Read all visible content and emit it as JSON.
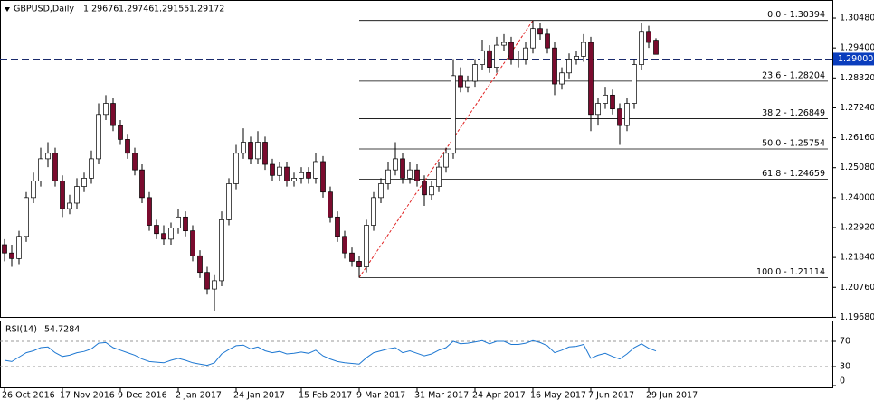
{
  "chart_data": {
    "type": "candlestick",
    "title": "GBPUSD,Daily",
    "last_ohlc": [
      1.29676,
      1.29746,
      1.29155,
      1.29172
    ],
    "categories": [
      "26 Oct 2016",
      null,
      null,
      null,
      null,
      null,
      null,
      null,
      "17 Nov 2016",
      null,
      null,
      null,
      null,
      null,
      null,
      null,
      "9 Dec 2016",
      null,
      null,
      null,
      null,
      null,
      null,
      null,
      "2 Jan 2017",
      null,
      null,
      null,
      null,
      null,
      null,
      null,
      "24 Jan 2017",
      null,
      null,
      null,
      null,
      null,
      null,
      null,
      null,
      "15 Feb 2017",
      null,
      null,
      null,
      null,
      null,
      null,
      null,
      "9 Mar 2017",
      null,
      null,
      null,
      null,
      null,
      null,
      null,
      "31 Mar 2017",
      null,
      null,
      null,
      null,
      null,
      null,
      null,
      "24 Apr 2017",
      null,
      null,
      null,
      null,
      null,
      null,
      null,
      "16 May 2017",
      null,
      null,
      null,
      null,
      null,
      null,
      null,
      "7 Jun 2017",
      null,
      null,
      null,
      null,
      null,
      null,
      null,
      "29 Jun 2017",
      null
    ],
    "candles": [
      [
        1.223,
        1.225,
        1.217,
        1.22
      ],
      [
        1.22,
        1.223,
        1.215,
        1.218
      ],
      [
        1.218,
        1.228,
        1.216,
        1.226
      ],
      [
        1.226,
        1.242,
        1.224,
        1.24
      ],
      [
        1.24,
        1.249,
        1.238,
        1.246
      ],
      [
        1.246,
        1.258,
        1.244,
        1.254
      ],
      [
        1.254,
        1.26,
        1.251,
        1.256
      ],
      [
        1.256,
        1.258,
        1.244,
        1.246
      ],
      [
        1.246,
        1.248,
        1.233,
        1.236
      ],
      [
        1.236,
        1.241,
        1.234,
        1.238
      ],
      [
        1.238,
        1.247,
        1.236,
        1.244
      ],
      [
        1.244,
        1.249,
        1.242,
        1.247
      ],
      [
        1.247,
        1.257,
        1.245,
        1.254
      ],
      [
        1.254,
        1.274,
        1.252,
        1.27
      ],
      [
        1.27,
        1.277,
        1.268,
        1.274
      ],
      [
        1.274,
        1.276,
        1.264,
        1.266
      ],
      [
        1.266,
        1.268,
        1.259,
        1.261
      ],
      [
        1.261,
        1.263,
        1.254,
        1.256
      ],
      [
        1.256,
        1.258,
        1.248,
        1.25
      ],
      [
        1.25,
        1.252,
        1.238,
        1.24
      ],
      [
        1.24,
        1.242,
        1.228,
        1.23
      ],
      [
        1.23,
        1.232,
        1.225,
        1.227
      ],
      [
        1.227,
        1.23,
        1.223,
        1.225
      ],
      [
        1.225,
        1.231,
        1.223,
        1.229
      ],
      [
        1.229,
        1.236,
        1.227,
        1.233
      ],
      [
        1.233,
        1.235,
        1.226,
        1.228
      ],
      [
        1.228,
        1.23,
        1.217,
        1.219
      ],
      [
        1.219,
        1.221,
        1.211,
        1.213
      ],
      [
        1.213,
        1.215,
        1.205,
        1.207
      ],
      [
        1.207,
        1.212,
        1.199,
        1.21
      ],
      [
        1.21,
        1.235,
        1.208,
        1.232
      ],
      [
        1.232,
        1.247,
        1.23,
        1.245
      ],
      [
        1.245,
        1.259,
        1.243,
        1.256
      ],
      [
        1.256,
        1.265,
        1.254,
        1.26
      ],
      [
        1.26,
        1.262,
        1.252,
        1.254
      ],
      [
        1.254,
        1.264,
        1.252,
        1.26
      ],
      [
        1.26,
        1.262,
        1.25,
        1.252
      ],
      [
        1.252,
        1.254,
        1.246,
        1.248
      ],
      [
        1.248,
        1.253,
        1.246,
        1.251
      ],
      [
        1.251,
        1.253,
        1.244,
        1.246
      ],
      [
        1.246,
        1.249,
        1.244,
        1.247
      ],
      [
        1.247,
        1.251,
        1.245,
        1.249
      ],
      [
        1.249,
        1.251,
        1.245,
        1.247
      ],
      [
        1.247,
        1.256,
        1.245,
        1.253
      ],
      [
        1.253,
        1.255,
        1.24,
        1.242
      ],
      [
        1.242,
        1.244,
        1.231,
        1.233
      ],
      [
        1.233,
        1.235,
        1.224,
        1.226
      ],
      [
        1.226,
        1.228,
        1.218,
        1.22
      ],
      [
        1.22,
        1.222,
        1.215,
        1.217
      ],
      [
        1.217,
        1.219,
        1.2111,
        1.215
      ],
      [
        1.215,
        1.232,
        1.213,
        1.23
      ],
      [
        1.23,
        1.242,
        1.228,
        1.24
      ],
      [
        1.24,
        1.247,
        1.238,
        1.245
      ],
      [
        1.245,
        1.253,
        1.243,
        1.25
      ],
      [
        1.25,
        1.26,
        1.248,
        1.254
      ],
      [
        1.254,
        1.256,
        1.245,
        1.247
      ],
      [
        1.247,
        1.253,
        1.245,
        1.25
      ],
      [
        1.25,
        1.252,
        1.244,
        1.246
      ],
      [
        1.246,
        1.248,
        1.237,
        1.241
      ],
      [
        1.241,
        1.246,
        1.239,
        1.244
      ],
      [
        1.244,
        1.253,
        1.242,
        1.251
      ],
      [
        1.251,
        1.258,
        1.249,
        1.256
      ],
      [
        1.256,
        1.29,
        1.254,
        1.284
      ],
      [
        1.284,
        1.287,
        1.278,
        1.28
      ],
      [
        1.28,
        1.284,
        1.278,
        1.282
      ],
      [
        1.282,
        1.29,
        1.28,
        1.288
      ],
      [
        1.288,
        1.297,
        1.286,
        1.293
      ],
      [
        1.293,
        1.295,
        1.285,
        1.287
      ],
      [
        1.287,
        1.298,
        1.285,
        1.295
      ],
      [
        1.295,
        1.299,
        1.293,
        1.296
      ],
      [
        1.296,
        1.298,
        1.288,
        1.29
      ],
      [
        1.29,
        1.293,
        1.287,
        1.29
      ],
      [
        1.29,
        1.296,
        1.288,
        1.294
      ],
      [
        1.294,
        1.3039,
        1.292,
        1.301
      ],
      [
        1.301,
        1.303,
        1.297,
        1.299
      ],
      [
        1.299,
        1.301,
        1.292,
        1.294
      ],
      [
        1.294,
        1.296,
        1.277,
        1.281
      ],
      [
        1.281,
        1.287,
        1.279,
        1.285
      ],
      [
        1.285,
        1.292,
        1.283,
        1.29
      ],
      [
        1.29,
        1.293,
        1.288,
        1.291
      ],
      [
        1.291,
        1.299,
        1.289,
        1.296
      ],
      [
        1.296,
        1.298,
        1.264,
        1.27
      ],
      [
        1.27,
        1.276,
        1.266,
        1.274
      ],
      [
        1.274,
        1.28,
        1.272,
        1.277
      ],
      [
        1.277,
        1.279,
        1.27,
        1.272
      ],
      [
        1.272,
        1.274,
        1.259,
        1.266
      ],
      [
        1.266,
        1.276,
        1.264,
        1.274
      ],
      [
        1.274,
        1.29,
        1.272,
        1.288
      ],
      [
        1.288,
        1.303,
        1.286,
        1.3
      ],
      [
        1.3,
        1.302,
        1.294,
        1.296
      ],
      [
        1.2968,
        1.2975,
        1.2916,
        1.2917
      ]
    ],
    "bull_color": "#ffffff",
    "bear_color": "#7a0b2e",
    "ylim": [
      1.1966,
      1.3097
    ],
    "yticks": [
      {
        "value": 1.3048,
        "label": "1.30480"
      },
      {
        "value": 1.294,
        "label": "1.29400"
      },
      {
        "value": 1.2832,
        "label": "1.28320"
      },
      {
        "value": 1.2724,
        "label": "1.27240"
      },
      {
        "value": 1.2616,
        "label": "1.26160"
      },
      {
        "value": 1.2508,
        "label": "1.25080"
      },
      {
        "value": 1.24,
        "label": "1.24000"
      },
      {
        "value": 1.2292,
        "label": "1.22920"
      },
      {
        "value": 1.2184,
        "label": "1.21840"
      },
      {
        "value": 1.2076,
        "label": "1.20760"
      },
      {
        "value": 1.1968,
        "label": "1.19680"
      }
    ],
    "hline": {
      "value": 1.29,
      "label": "1.29000"
    },
    "fibonacci": [
      {
        "value": 1.30394,
        "label": "0.0 - 1.30394"
      },
      {
        "value": 1.28204,
        "label": "23.6 - 1.28204"
      },
      {
        "value": 1.26849,
        "label": "38.2 - 1.26849"
      },
      {
        "value": 1.25754,
        "label": "50.0 - 1.25754"
      },
      {
        "value": 1.24659,
        "label": "61.8 - 1.24659"
      },
      {
        "value": 1.21114,
        "label": "100.0 - 1.21114"
      }
    ],
    "rsi": {
      "type": "line",
      "name": "RSI(14)",
      "color": "#1e78d2",
      "ylim": [
        0,
        100
      ],
      "yticks": [
        0,
        30,
        70
      ],
      "levels": [
        30,
        70
      ],
      "values": [
        40,
        38,
        45,
        52,
        55,
        60,
        61,
        52,
        46,
        48,
        52,
        54,
        58,
        67,
        68,
        60,
        56,
        52,
        48,
        42,
        38,
        37,
        36,
        40,
        43,
        40,
        36,
        34,
        32,
        36,
        50,
        57,
        63,
        64,
        58,
        61,
        55,
        52,
        54,
        50,
        51,
        53,
        51,
        56,
        47,
        42,
        38,
        36,
        35,
        34,
        44,
        52,
        55,
        58,
        60,
        52,
        55,
        51,
        47,
        50,
        56,
        60,
        70,
        66,
        67,
        69,
        71,
        66,
        70,
        70,
        65,
        65,
        67,
        71,
        68,
        63,
        52,
        56,
        61,
        62,
        65,
        43,
        48,
        51,
        46,
        42,
        50,
        60,
        66,
        59,
        54.7284
      ]
    }
  }
}
